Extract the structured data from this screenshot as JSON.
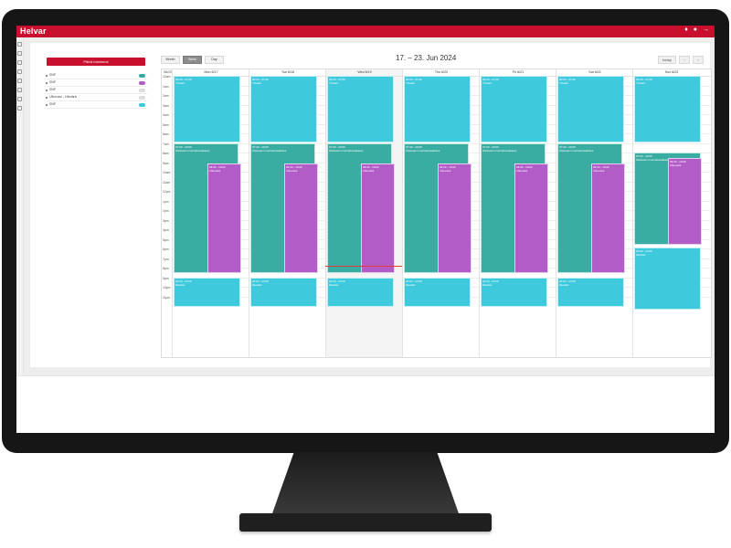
{
  "app": {
    "brand": "Helvar",
    "header_icons": [
      "bell-icon",
      "user-icon",
      "logout-icon"
    ]
  },
  "sidebar": {
    "new_button": "Päivä toiminnot",
    "schedules": [
      {
        "label": "SNF",
        "on": true,
        "color": "#3aa8a0"
      },
      {
        "label": "SNF",
        "on": true,
        "color": "#b25cc7"
      },
      {
        "label": "SNF",
        "on": false,
        "color": "#bbbbbb"
      },
      {
        "label": "Ulkovalo - Hämärä",
        "on": false,
        "color": "#bbbbbb"
      },
      {
        "label": "SNF",
        "on": true,
        "color": "#3fc9dd"
      }
    ]
  },
  "calendar": {
    "views": [
      "Month",
      "Week",
      "Day"
    ],
    "active_view": "Week",
    "range_title": "17. – 23. Jun 2024",
    "nav": {
      "today": "today",
      "prev": "‹",
      "next": "›"
    },
    "timezone_label": "Wk25",
    "hours": [
      "12am",
      "1am",
      "2am",
      "3am",
      "4am",
      "5am",
      "6am",
      "7am",
      "8am",
      "9am",
      "10am",
      "11am",
      "12pm",
      "1pm",
      "2pm",
      "3pm",
      "4pm",
      "5pm",
      "6pm",
      "7pm",
      "8pm",
      "9pm",
      "10pm",
      "11pm"
    ],
    "days": [
      "Mon 6/17",
      "Tue 6/18",
      "Wed 6/19",
      "Thu 6/20",
      "Fri 6/21",
      "Sat 6/22",
      "Sun 6/23"
    ],
    "today_index": 2,
    "event_labels": {
      "night": "Yövalot",
      "night_time": "00:00 - 07:00",
      "office": "Oletusarvo toimistovalaistus",
      "office_time": "07:00 - 20:00",
      "work": "Ulkovalot",
      "work_time": "09:00 - 19:00",
      "evening": "Iltavalot",
      "evening_time": "20:00 - 23:00"
    },
    "colors": {
      "cyan": "#3fc9dd",
      "teal": "#3aada3",
      "purple": "#b25cc7",
      "brand": "#c8102e"
    }
  }
}
